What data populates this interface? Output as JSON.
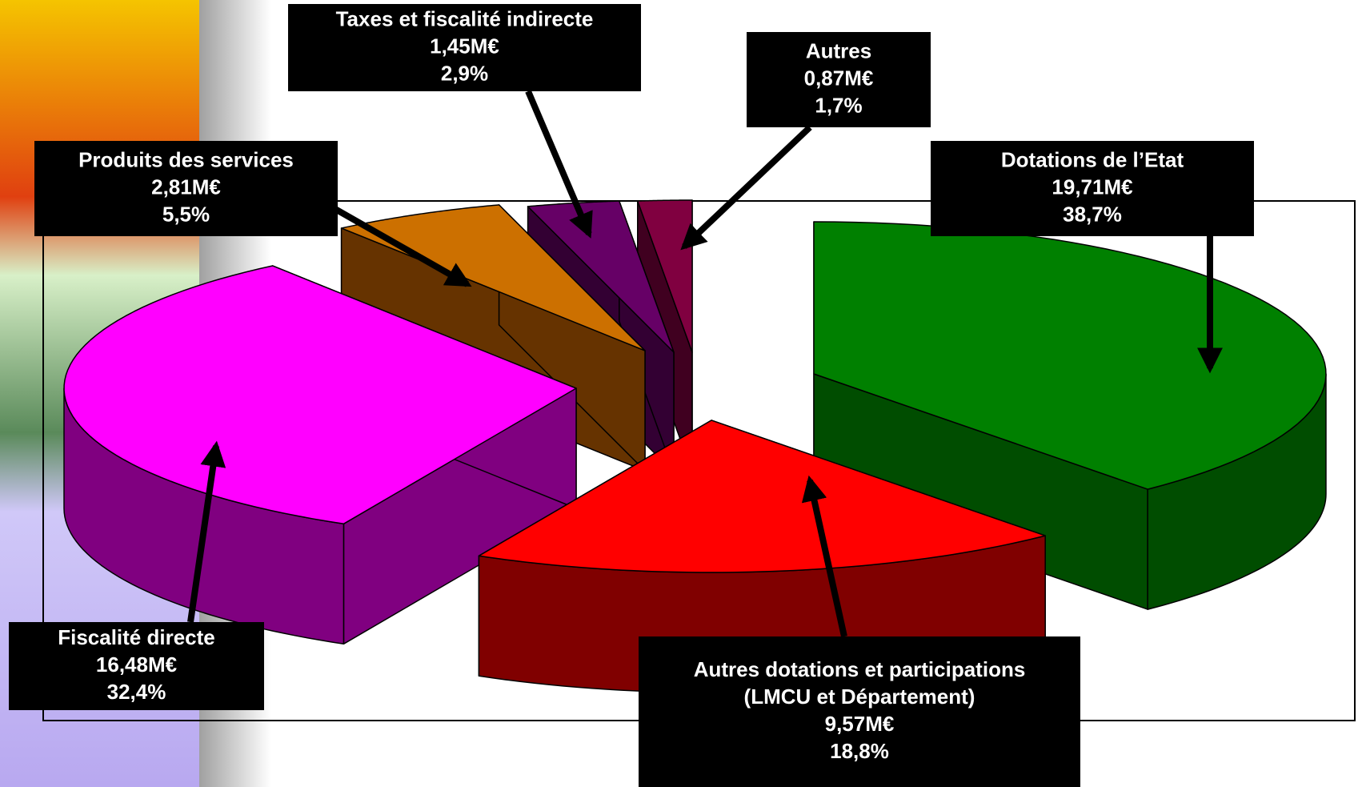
{
  "chart_data": {
    "type": "pie3d",
    "categories": [
      [
        "Dotations de l’Etat"
      ],
      [
        "Autres dotations et participations",
        "(LMCU et Département)"
      ],
      [
        "Fiscalité directe"
      ],
      [
        "Produits des services"
      ],
      [
        "Taxes et fiscalité indirecte"
      ],
      [
        "Autres"
      ]
    ],
    "amount_labels": [
      "19,71M€",
      "9,57M€",
      "16,48M€",
      "2,81M€",
      "1,45M€",
      "0,87M€"
    ],
    "values": [
      38.7,
      18.8,
      32.4,
      5.5,
      2.9,
      1.7
    ],
    "value_labels": [
      "38,7%",
      "18,8%",
      "32,4%",
      "5,5%",
      "2,9%",
      "1,7%"
    ],
    "colors": [
      "#008000",
      "#ff0000",
      "#ff00ff",
      "#cc7000",
      "#660066",
      "#800040"
    ],
    "side_colors": [
      "#004d00",
      "#800000",
      "#800080",
      "#663300",
      "#330033",
      "#400020"
    ]
  }
}
